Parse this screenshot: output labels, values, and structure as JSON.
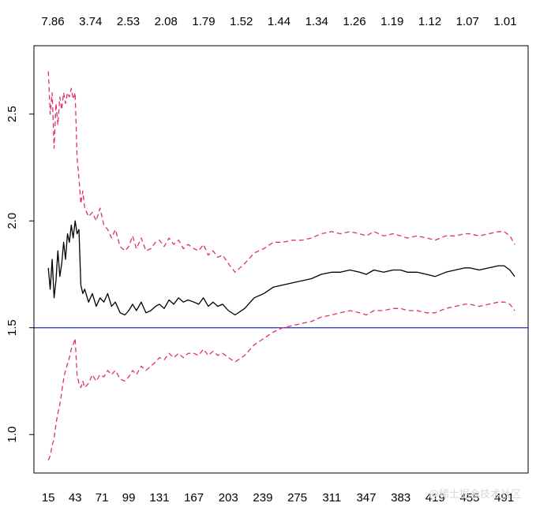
{
  "chart_data": {
    "type": "line",
    "title": "",
    "xlabel": "",
    "ylabel": "",
    "xlim": [
      0,
      516
    ],
    "ylim": [
      0.82,
      2.82
    ],
    "x_ticks": [
      15,
      43,
      71,
      99,
      131,
      167,
      203,
      239,
      275,
      311,
      347,
      383,
      419,
      455,
      491
    ],
    "y_ticks": [
      "1.0",
      "1.5",
      "2.0",
      "2.5"
    ],
    "top_axis_labels": [
      "7.86",
      "3.74",
      "2.53",
      "2.08",
      "1.79",
      "1.52",
      "1.44",
      "1.34",
      "1.26",
      "1.19",
      "1.12",
      "1.07",
      "1.01"
    ],
    "reference_line": {
      "y": 1.5,
      "color": "#2233bb"
    },
    "grid": false,
    "series": [
      {
        "style": "solid",
        "color": "#000000",
        "x": [
          15,
          17,
          19,
          21,
          23,
          25,
          27,
          29,
          31,
          33,
          35,
          37,
          39,
          41,
          43,
          45,
          47,
          49,
          51,
          53,
          57,
          61,
          65,
          69,
          73,
          77,
          81,
          85,
          90,
          95,
          99,
          103,
          107,
          112,
          117,
          122,
          127,
          131,
          136,
          141,
          146,
          151,
          156,
          161,
          167,
          172,
          177,
          182,
          187,
          192,
          197,
          203,
          210,
          220,
          230,
          240,
          250,
          260,
          270,
          280,
          290,
          300,
          311,
          320,
          330,
          340,
          347,
          355,
          365,
          375,
          383,
          390,
          400,
          410,
          419,
          430,
          440,
          450,
          455,
          465,
          475,
          485,
          491,
          497,
          502
        ],
        "y": [
          1.78,
          1.68,
          1.82,
          1.64,
          1.72,
          1.86,
          1.74,
          1.8,
          1.9,
          1.82,
          1.94,
          1.9,
          1.98,
          1.92,
          2.0,
          1.94,
          1.96,
          1.7,
          1.66,
          1.68,
          1.62,
          1.66,
          1.6,
          1.64,
          1.62,
          1.66,
          1.6,
          1.62,
          1.57,
          1.56,
          1.58,
          1.61,
          1.58,
          1.62,
          1.57,
          1.58,
          1.6,
          1.61,
          1.59,
          1.63,
          1.61,
          1.64,
          1.62,
          1.63,
          1.62,
          1.61,
          1.64,
          1.6,
          1.62,
          1.6,
          1.61,
          1.58,
          1.56,
          1.59,
          1.64,
          1.66,
          1.69,
          1.7,
          1.71,
          1.72,
          1.73,
          1.75,
          1.76,
          1.76,
          1.77,
          1.76,
          1.75,
          1.77,
          1.76,
          1.77,
          1.77,
          1.76,
          1.76,
          1.75,
          1.74,
          1.76,
          1.77,
          1.78,
          1.78,
          1.77,
          1.78,
          1.79,
          1.79,
          1.77,
          1.74
        ]
      },
      {
        "style": "dashed",
        "color": "#e0306a",
        "x": [
          15,
          17,
          19,
          21,
          23,
          25,
          27,
          29,
          31,
          33,
          35,
          37,
          39,
          41,
          43,
          45,
          47,
          49,
          51,
          53,
          57,
          61,
          65,
          69,
          73,
          77,
          81,
          85,
          90,
          95,
          99,
          103,
          107,
          112,
          117,
          122,
          127,
          131,
          136,
          141,
          146,
          151,
          156,
          161,
          167,
          172,
          177,
          182,
          187,
          192,
          197,
          203,
          210,
          220,
          230,
          240,
          250,
          260,
          270,
          280,
          290,
          300,
          311,
          320,
          330,
          340,
          347,
          355,
          365,
          375,
          383,
          390,
          400,
          410,
          419,
          430,
          440,
          450,
          455,
          465,
          475,
          485,
          491,
          497,
          502
        ],
        "y": [
          2.7,
          2.5,
          2.6,
          2.34,
          2.55,
          2.45,
          2.58,
          2.52,
          2.6,
          2.55,
          2.6,
          2.58,
          2.62,
          2.57,
          2.6,
          2.3,
          2.2,
          2.08,
          2.14,
          2.06,
          2.02,
          2.04,
          2.0,
          2.06,
          1.98,
          1.96,
          1.92,
          1.96,
          1.88,
          1.86,
          1.88,
          1.93,
          1.87,
          1.92,
          1.86,
          1.87,
          1.9,
          1.91,
          1.88,
          1.92,
          1.89,
          1.91,
          1.87,
          1.89,
          1.87,
          1.86,
          1.89,
          1.84,
          1.86,
          1.83,
          1.84,
          1.8,
          1.76,
          1.8,
          1.85,
          1.87,
          1.9,
          1.9,
          1.91,
          1.91,
          1.92,
          1.94,
          1.95,
          1.94,
          1.95,
          1.94,
          1.93,
          1.95,
          1.93,
          1.94,
          1.93,
          1.92,
          1.93,
          1.92,
          1.91,
          1.93,
          1.93,
          1.94,
          1.94,
          1.93,
          1.94,
          1.95,
          1.95,
          1.93,
          1.89
        ]
      },
      {
        "style": "dashed",
        "color": "#e0306a",
        "x": [
          15,
          17,
          19,
          21,
          23,
          25,
          27,
          29,
          31,
          33,
          35,
          37,
          39,
          41,
          43,
          45,
          47,
          49,
          51,
          53,
          57,
          61,
          65,
          69,
          73,
          77,
          81,
          85,
          90,
          95,
          99,
          103,
          107,
          112,
          117,
          122,
          127,
          131,
          136,
          141,
          146,
          151,
          156,
          161,
          167,
          172,
          177,
          182,
          187,
          192,
          197,
          203,
          210,
          220,
          230,
          240,
          250,
          260,
          270,
          280,
          290,
          300,
          311,
          320,
          330,
          340,
          347,
          355,
          365,
          375,
          383,
          390,
          400,
          410,
          419,
          430,
          440,
          450,
          455,
          465,
          475,
          485,
          491,
          497,
          502
        ],
        "y": [
          0.88,
          0.9,
          0.95,
          0.98,
          1.05,
          1.1,
          1.14,
          1.2,
          1.26,
          1.3,
          1.33,
          1.36,
          1.4,
          1.42,
          1.45,
          1.28,
          1.24,
          1.22,
          1.25,
          1.22,
          1.24,
          1.28,
          1.25,
          1.28,
          1.27,
          1.3,
          1.28,
          1.3,
          1.26,
          1.25,
          1.27,
          1.3,
          1.28,
          1.32,
          1.3,
          1.32,
          1.34,
          1.36,
          1.35,
          1.38,
          1.36,
          1.38,
          1.36,
          1.38,
          1.38,
          1.37,
          1.4,
          1.37,
          1.39,
          1.37,
          1.38,
          1.36,
          1.34,
          1.37,
          1.42,
          1.45,
          1.48,
          1.5,
          1.51,
          1.52,
          1.53,
          1.55,
          1.56,
          1.57,
          1.58,
          1.57,
          1.56,
          1.58,
          1.58,
          1.59,
          1.59,
          1.58,
          1.58,
          1.57,
          1.57,
          1.59,
          1.6,
          1.61,
          1.61,
          1.6,
          1.61,
          1.62,
          1.62,
          1.61,
          1.58
        ]
      }
    ]
  },
  "watermark": {
    "text": "@稀土掘金技术社区"
  }
}
